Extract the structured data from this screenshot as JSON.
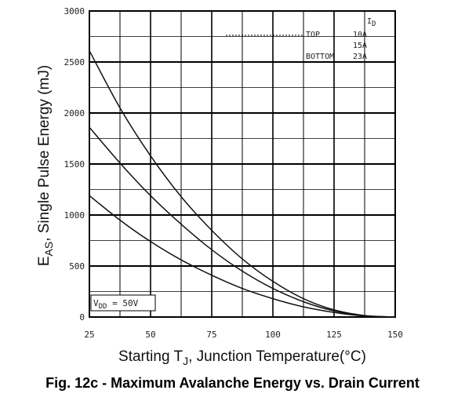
{
  "chart_data": {
    "type": "line",
    "title": "Fig. 12c - Maximum Avalanche Energy vs. Drain Current",
    "xlabel": "Starting T",
    "xlabel_sub": "J",
    "xlabel_rest": ", Junction Temperature(°C)",
    "ylabel": "E",
    "ylabel_sub": "AS",
    "ylabel_rest": ", Single Pulse Energy (mJ)",
    "xlim": [
      25,
      150
    ],
    "ylim": [
      0,
      3000
    ],
    "x_ticks": [
      25,
      50,
      75,
      100,
      125,
      150
    ],
    "y_ticks": [
      0,
      500,
      1000,
      1500,
      2000,
      2500,
      3000
    ],
    "grid": true,
    "legend": {
      "header": "I",
      "header_sub": "D",
      "rows": [
        {
          "label": "TOP",
          "value": "10A"
        },
        {
          "label": "",
          "value": "15A"
        },
        {
          "label": "BOTTOM",
          "value": "23A"
        }
      ],
      "placement": "top-right"
    },
    "annotation": {
      "prefix": "V",
      "sub": "DD",
      "rest": " = 50V"
    },
    "series": [
      {
        "x": [
          25,
          37.5,
          50,
          62.5,
          75,
          87.5,
          100,
          112.5,
          125,
          137.5,
          150
        ],
        "values": [
          2610,
          2050,
          1580,
          1180,
          850,
          570,
          350,
          180,
          70,
          15,
          0
        ]
      },
      {
        "x": [
          25,
          37.5,
          50,
          62.5,
          75,
          87.5,
          100,
          112.5,
          125,
          137.5,
          150
        ],
        "values": [
          1860,
          1510,
          1190,
          910,
          660,
          450,
          280,
          150,
          60,
          12,
          0
        ]
      },
      {
        "x": [
          25,
          37.5,
          50,
          62.5,
          75,
          87.5,
          100,
          112.5,
          125,
          137.5,
          150
        ],
        "values": [
          1190,
          950,
          740,
          560,
          410,
          280,
          180,
          100,
          45,
          10,
          0
        ]
      }
    ]
  }
}
